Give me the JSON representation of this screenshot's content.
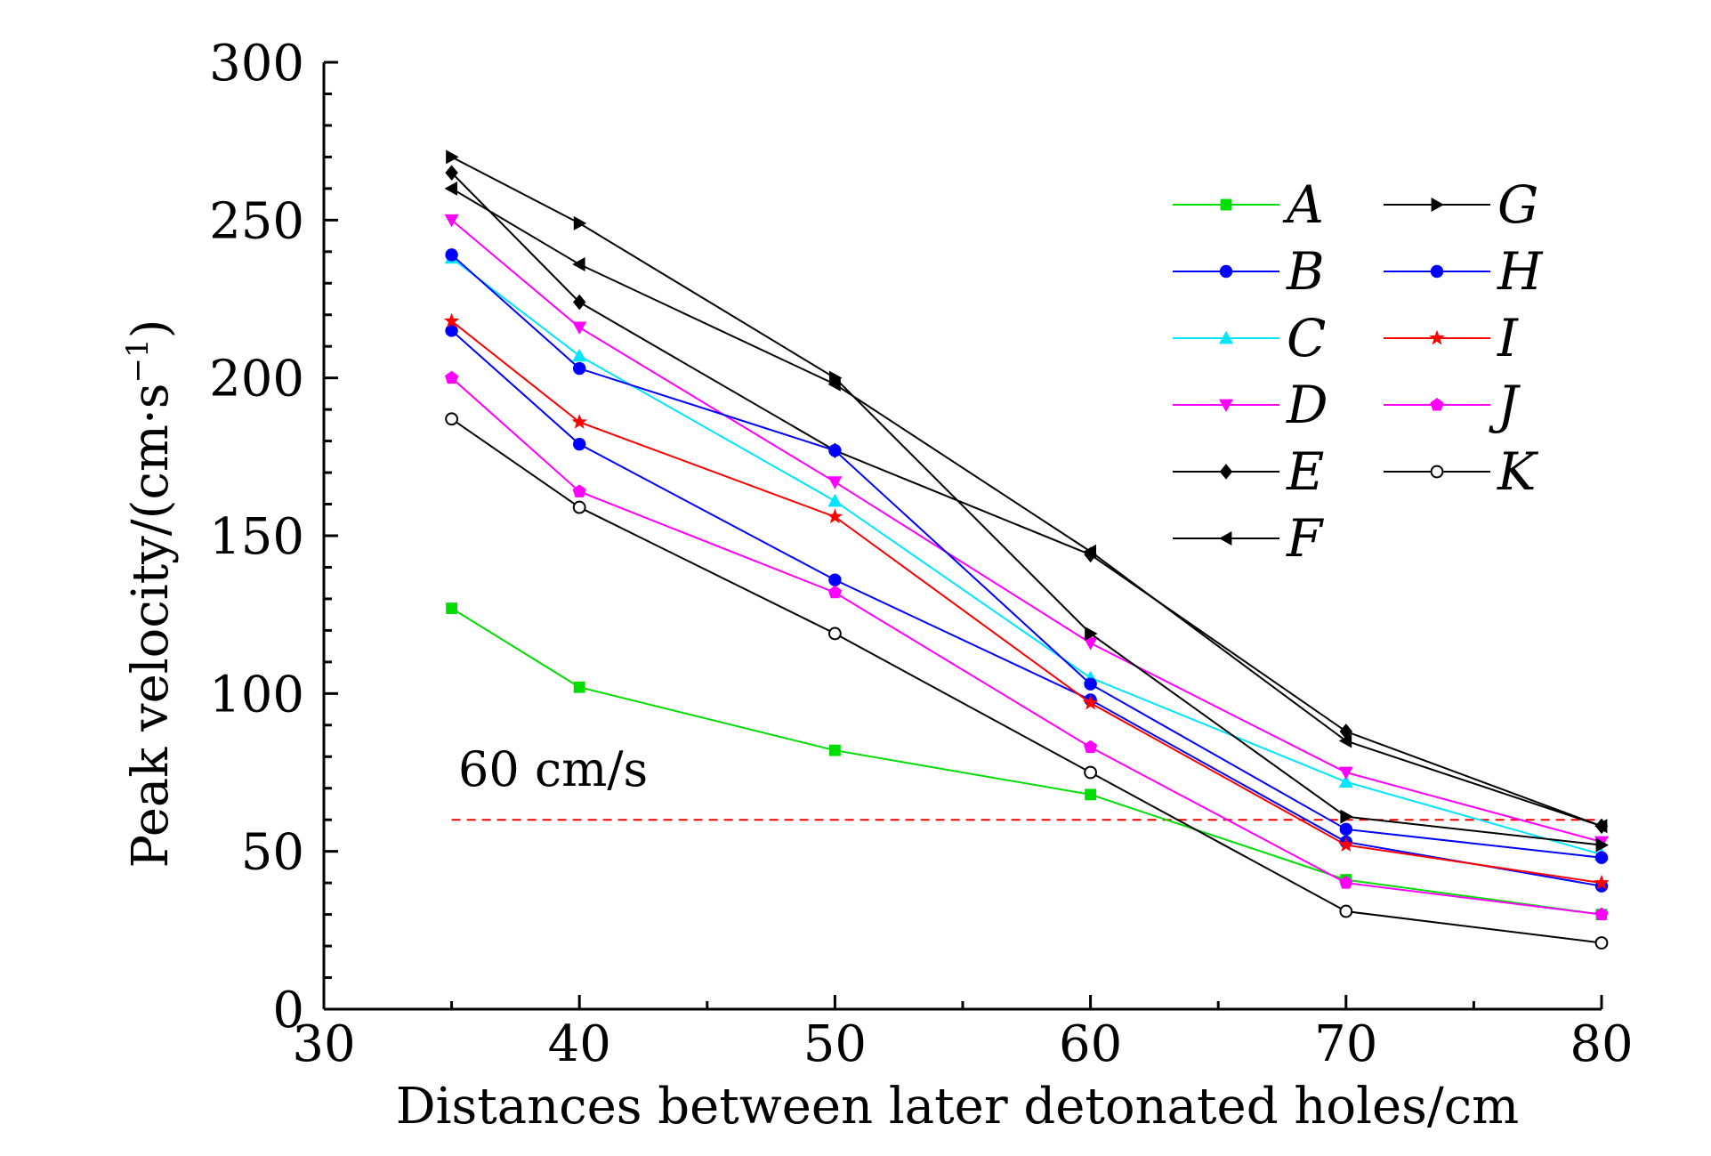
{
  "chart_data": {
    "type": "line",
    "xlabel": "Distances between later detonated holes/cm",
    "ylabel": "Peak velocity/(cm·s",
    "ylabel_sup": "−1",
    "ylabel_close": ")",
    "xlim": [
      30,
      80
    ],
    "ylim": [
      0,
      300
    ],
    "xticks": [
      30,
      40,
      50,
      60,
      70,
      80
    ],
    "yticks": [
      0,
      50,
      100,
      150,
      200,
      250,
      300
    ],
    "grid": false,
    "legend_placement": "top-right",
    "x": [
      35,
      40,
      50,
      60,
      70,
      80
    ],
    "reference_line": {
      "y": 60,
      "label": "60 cm/s",
      "color": "#ff0000",
      "style": "dashed"
    },
    "series": [
      {
        "name": "A",
        "color": "#00dd00",
        "marker": "square",
        "values": [
          127,
          102,
          82,
          68,
          41,
          30
        ]
      },
      {
        "name": "B",
        "color": "#0000ff",
        "marker": "circle",
        "values": [
          215,
          179,
          136,
          98,
          53,
          39
        ]
      },
      {
        "name": "C",
        "color": "#00e5ff",
        "marker": "triangle-up",
        "values": [
          238,
          207,
          161,
          105,
          72,
          49
        ]
      },
      {
        "name": "D",
        "color": "#ff00ff",
        "marker": "triangle-down",
        "values": [
          250,
          216,
          167,
          116,
          75,
          53
        ]
      },
      {
        "name": "E",
        "color": "#000000",
        "marker": "diamond",
        "values": [
          265,
          224,
          177,
          144,
          88,
          58
        ]
      },
      {
        "name": "F",
        "color": "#000000",
        "marker": "triangle-left",
        "values": [
          260,
          236,
          198,
          145,
          85,
          58
        ]
      },
      {
        "name": "G",
        "color": "#000000",
        "marker": "triangle-right",
        "values": [
          270,
          249,
          200,
          119,
          61,
          52
        ]
      },
      {
        "name": "H",
        "color": "#0000ff",
        "marker": "circle",
        "values": [
          239,
          203,
          177,
          103,
          57,
          48
        ]
      },
      {
        "name": "I",
        "color": "#ff0000",
        "marker": "star",
        "values": [
          218,
          186,
          156,
          97,
          52,
          40
        ]
      },
      {
        "name": "J",
        "color": "#ff00ff",
        "marker": "pentagon",
        "values": [
          200,
          164,
          132,
          83,
          40,
          30
        ]
      },
      {
        "name": "K",
        "color": "#000000",
        "marker": "open-circle",
        "values": [
          187,
          159,
          119,
          75,
          31,
          21
        ]
      }
    ]
  }
}
